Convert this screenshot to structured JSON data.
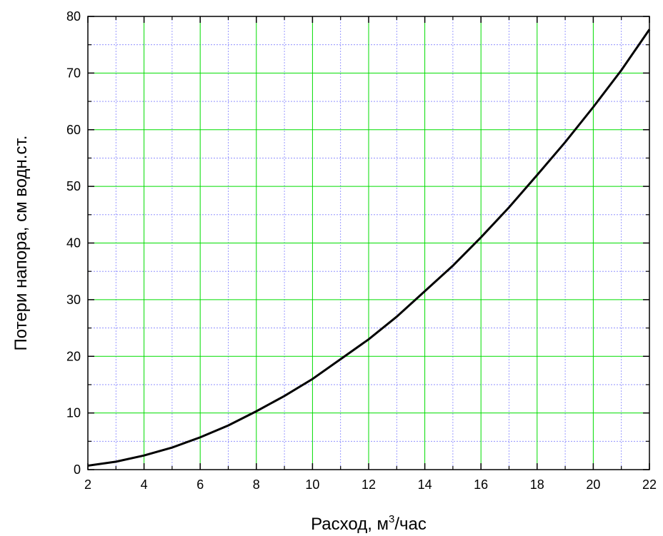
{
  "chart_data": {
    "type": "line",
    "title": "",
    "xlabel": "Расход, м³/час",
    "xlabel_parts": {
      "before": "Расход, м",
      "sup": "3",
      "after": "/час"
    },
    "ylabel": "Потери напора, см водн.ст.",
    "xlim": [
      2,
      22
    ],
    "ylim": [
      0,
      80
    ],
    "x_ticks": [
      "2",
      "4",
      "6",
      "8",
      "10",
      "12",
      "14",
      "16",
      "18",
      "20",
      "22"
    ],
    "y_ticks": [
      "0",
      "10",
      "20",
      "30",
      "40",
      "50",
      "60",
      "70",
      "80"
    ],
    "grid": {
      "major": true,
      "minor": true,
      "major_color": "#00dd00",
      "minor_color": "#8080ff"
    },
    "legend": "none",
    "series": [
      {
        "color": "#000000",
        "x": [
          2,
          3,
          4,
          5,
          6,
          7,
          8,
          9,
          10,
          11,
          12,
          13,
          14,
          15,
          16,
          17,
          18,
          19,
          20,
          21,
          22
        ],
        "y": [
          0.7,
          1.4,
          2.5,
          3.9,
          5.7,
          7.8,
          10.3,
          13.0,
          16.0,
          19.5,
          23.0,
          27.0,
          31.5,
          36.0,
          41.0,
          46.3,
          52.0,
          57.8,
          64.0,
          70.5,
          77.7
        ]
      }
    ]
  }
}
